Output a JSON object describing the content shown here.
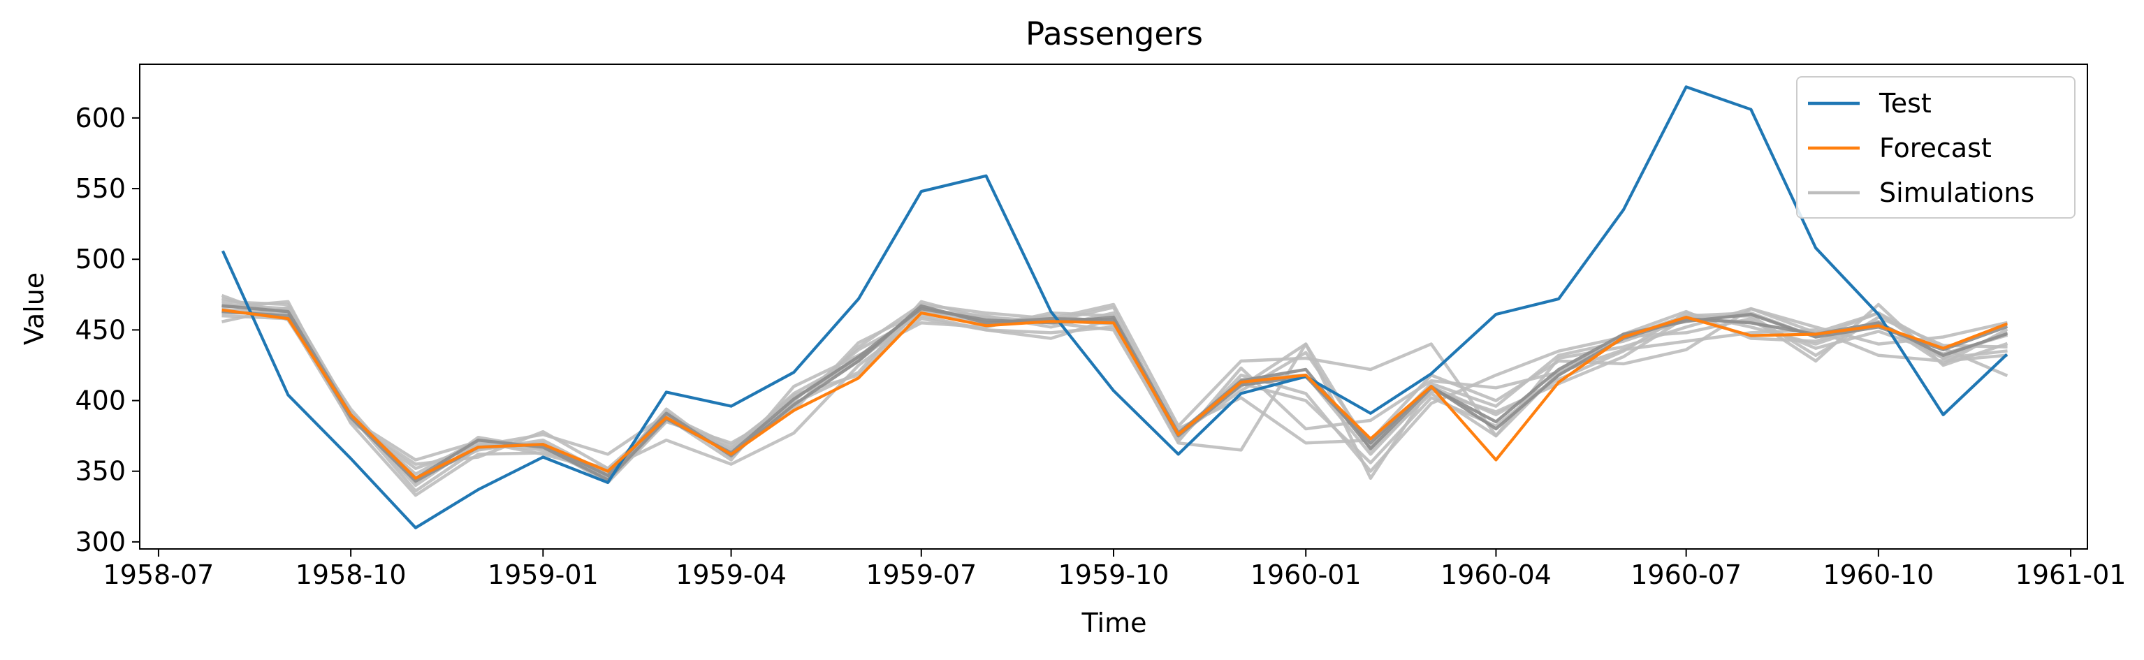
{
  "chart_data": {
    "type": "line",
    "title": "Passengers",
    "xlabel": "Time",
    "ylabel": "Value",
    "xlim": [
      "1958-06-22",
      "1961-01-09"
    ],
    "ylim": [
      295,
      638
    ],
    "x_ticks": [
      "1958-07",
      "1958-10",
      "1959-01",
      "1959-04",
      "1959-07",
      "1959-10",
      "1960-01",
      "1960-04",
      "1960-07",
      "1960-10",
      "1961-01"
    ],
    "y_ticks": [
      300,
      350,
      400,
      450,
      500,
      550,
      600
    ],
    "grid": false,
    "legend_position": "top-right",
    "x": [
      "1958-08",
      "1958-09",
      "1958-10",
      "1958-11",
      "1958-12",
      "1959-01",
      "1959-02",
      "1959-03",
      "1959-04",
      "1959-05",
      "1959-06",
      "1959-07",
      "1959-08",
      "1959-09",
      "1959-10",
      "1959-11",
      "1959-12",
      "1960-01",
      "1960-02",
      "1960-03",
      "1960-04",
      "1960-05",
      "1960-06",
      "1960-07",
      "1960-08",
      "1960-09",
      "1960-10",
      "1960-11",
      "1960-12"
    ],
    "series": [
      {
        "name": "Simulations",
        "color": "#bdbdbd",
        "role": "simulation",
        "values": [
          468,
          465,
          390,
          340,
          370,
          365,
          345,
          390,
          365,
          405,
          430,
          462,
          455,
          460,
          455,
          378,
          410,
          440,
          365,
          405,
          375,
          420,
          445,
          460,
          462,
          445,
          462,
          430,
          448
        ]
      },
      {
        "name": "Simulations",
        "color": "#bdbdbd",
        "role": "simulation",
        "values": [
          460,
          458,
          385,
          355,
          360,
          378,
          352,
          372,
          355,
          377,
          425,
          458,
          450,
          448,
          452,
          370,
          365,
          440,
          345,
          410,
          390,
          415,
          435,
          462,
          452,
          440,
          455,
          430,
          435
        ]
      },
      {
        "name": "Simulations",
        "color": "#bdbdbd",
        "role": "simulation",
        "values": [
          472,
          462,
          388,
          348,
          372,
          368,
          342,
          385,
          370,
          395,
          438,
          468,
          462,
          458,
          468,
          382,
          428,
          430,
          422,
          440,
          375,
          430,
          438,
          452,
          465,
          448,
          462,
          437,
          418
        ]
      },
      {
        "name": "Simulations",
        "color": "#bdbdbd",
        "role": "simulation",
        "values": [
          470,
          468,
          392,
          345,
          365,
          372,
          348,
          392,
          362,
          398,
          420,
          470,
          458,
          455,
          450,
          372,
          418,
          405,
          350,
          398,
          418,
          435,
          445,
          448,
          458,
          428,
          468,
          425,
          440
        ]
      },
      {
        "name": "Simulations",
        "color": "#bdbdbd",
        "role": "simulation",
        "values": [
          456,
          466,
          384,
          333,
          362,
          363,
          352,
          388,
          358,
          410,
          432,
          455,
          452,
          462,
          460,
          380,
          402,
          370,
          372,
          418,
          400,
          428,
          426,
          436,
          465,
          452,
          440,
          445,
          455
        ]
      },
      {
        "name": "Simulations",
        "color": "#bdbdbd",
        "role": "simulation",
        "values": [
          466,
          470,
          386,
          352,
          368,
          376,
          362,
          390,
          368,
          402,
          428,
          464,
          460,
          452,
          462,
          371,
          423,
          380,
          386,
          414,
          409,
          420,
          436,
          442,
          448,
          450,
          432,
          428,
          432
        ]
      },
      {
        "name": "Simulations",
        "color": "#bdbdbd",
        "role": "simulation",
        "values": [
          462,
          462,
          394,
          342,
          374,
          366,
          346,
          394,
          360,
          400,
          436,
          460,
          450,
          444,
          458,
          374,
          412,
          400,
          356,
          402,
          382,
          418,
          447,
          463,
          444,
          442,
          456,
          426,
          450
        ]
      },
      {
        "name": "Simulations",
        "color": "#bdbdbd",
        "role": "simulation",
        "values": [
          474,
          457,
          389,
          336,
          366,
          370,
          343,
          386,
          366,
          404,
          418,
          466,
          456,
          457,
          454,
          376,
          407,
          434,
          368,
          412,
          396,
          432,
          442,
          457,
          456,
          437,
          449,
          433,
          446
        ]
      },
      {
        "name": "Simulations",
        "color": "#bdbdbd",
        "role": "simulation",
        "values": [
          464,
          464,
          387,
          358,
          371,
          362,
          350,
          389,
          364,
          393,
          441,
          463,
          459,
          456,
          466,
          373,
          415,
          418,
          362,
          407,
          392,
          412,
          431,
          459,
          460,
          432,
          459,
          439,
          438
        ]
      },
      {
        "name": "Simulations",
        "color": "#8c8c8c",
        "role": "simulation",
        "values": [
          467,
          463,
          390,
          345,
          372,
          367,
          344,
          387,
          363,
          401,
          431,
          465,
          457,
          455,
          459,
          377,
          414,
          422,
          366,
          409,
          385,
          422,
          447,
          456,
          461,
          445,
          452,
          436,
          452
        ]
      },
      {
        "name": "Simulations",
        "color": "#8c8c8c",
        "role": "simulation",
        "values": [
          463,
          460,
          388,
          343,
          367,
          369,
          347,
          391,
          361,
          397,
          428,
          467,
          455,
          458,
          457,
          375,
          411,
          417,
          370,
          410,
          380,
          418,
          444,
          458,
          455,
          447,
          455,
          432,
          447
        ]
      },
      {
        "name": "Test",
        "color": "#1f77b4",
        "role": "test",
        "values": [
          505,
          404,
          359,
          310,
          337,
          360,
          342,
          406,
          396,
          420,
          472,
          548,
          559,
          463,
          407,
          362,
          405,
          417,
          391,
          419,
          461,
          472,
          535,
          622,
          606,
          508,
          461,
          390,
          432
        ]
      },
      {
        "name": "Forecast",
        "color": "#ff7f0e",
        "role": "forecast",
        "values": [
          464,
          458,
          390,
          345,
          367,
          369,
          350,
          388,
          362,
          393,
          416,
          462,
          453,
          456,
          455,
          376,
          413,
          418,
          373,
          410,
          358,
          413,
          445,
          459,
          446,
          447,
          453,
          437,
          454
        ]
      }
    ],
    "legend": [
      {
        "label": "Test",
        "color": "#1f77b4"
      },
      {
        "label": "Forecast",
        "color": "#ff7f0e"
      },
      {
        "label": "Simulations",
        "color": "#bdbdbd"
      }
    ]
  }
}
